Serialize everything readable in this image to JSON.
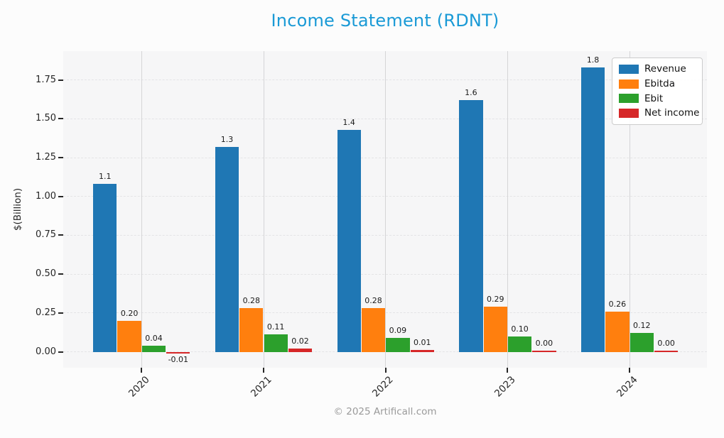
{
  "chart_data": {
    "type": "bar",
    "title": "Income Statement (RDNT)",
    "title_color": "#1a9ad6",
    "ylabel": "$(Billion)",
    "categories": [
      "2020",
      "2021",
      "2022",
      "2023",
      "2024"
    ],
    "series": [
      {
        "name": "Revenue",
        "color": "#1f77b4",
        "values": [
          1.08,
          1.32,
          1.43,
          1.62,
          1.83
        ],
        "labels": [
          "1.1",
          "1.3",
          "1.4",
          "1.6",
          "1.8"
        ]
      },
      {
        "name": "Ebitda",
        "color": "#ff7f0e",
        "values": [
          0.2,
          0.28,
          0.28,
          0.29,
          0.26
        ],
        "labels": [
          "0.20",
          "0.28",
          "0.28",
          "0.29",
          "0.26"
        ]
      },
      {
        "name": "Ebit",
        "color": "#2ca02c",
        "values": [
          0.04,
          0.11,
          0.09,
          0.1,
          0.12
        ],
        "labels": [
          "0.04",
          "0.11",
          "0.09",
          "0.10",
          "0.12"
        ]
      },
      {
        "name": "Net income",
        "color": "#d62728",
        "values": [
          -0.01,
          0.02,
          0.01,
          0.004,
          0.004
        ],
        "labels": [
          "-0.01",
          "0.02",
          "0.01",
          "0.00",
          "0.00"
        ]
      }
    ],
    "y_ticks": [
      "0.00",
      "0.25",
      "0.50",
      "0.75",
      "1.00",
      "1.25",
      "1.50",
      "1.75"
    ],
    "y_tick_step": 0.25,
    "ylim": [
      -0.1,
      1.94
    ],
    "grid": true,
    "legend_position": "upper right"
  },
  "footer": {
    "copyright": "© 2025 Artificall.com"
  }
}
